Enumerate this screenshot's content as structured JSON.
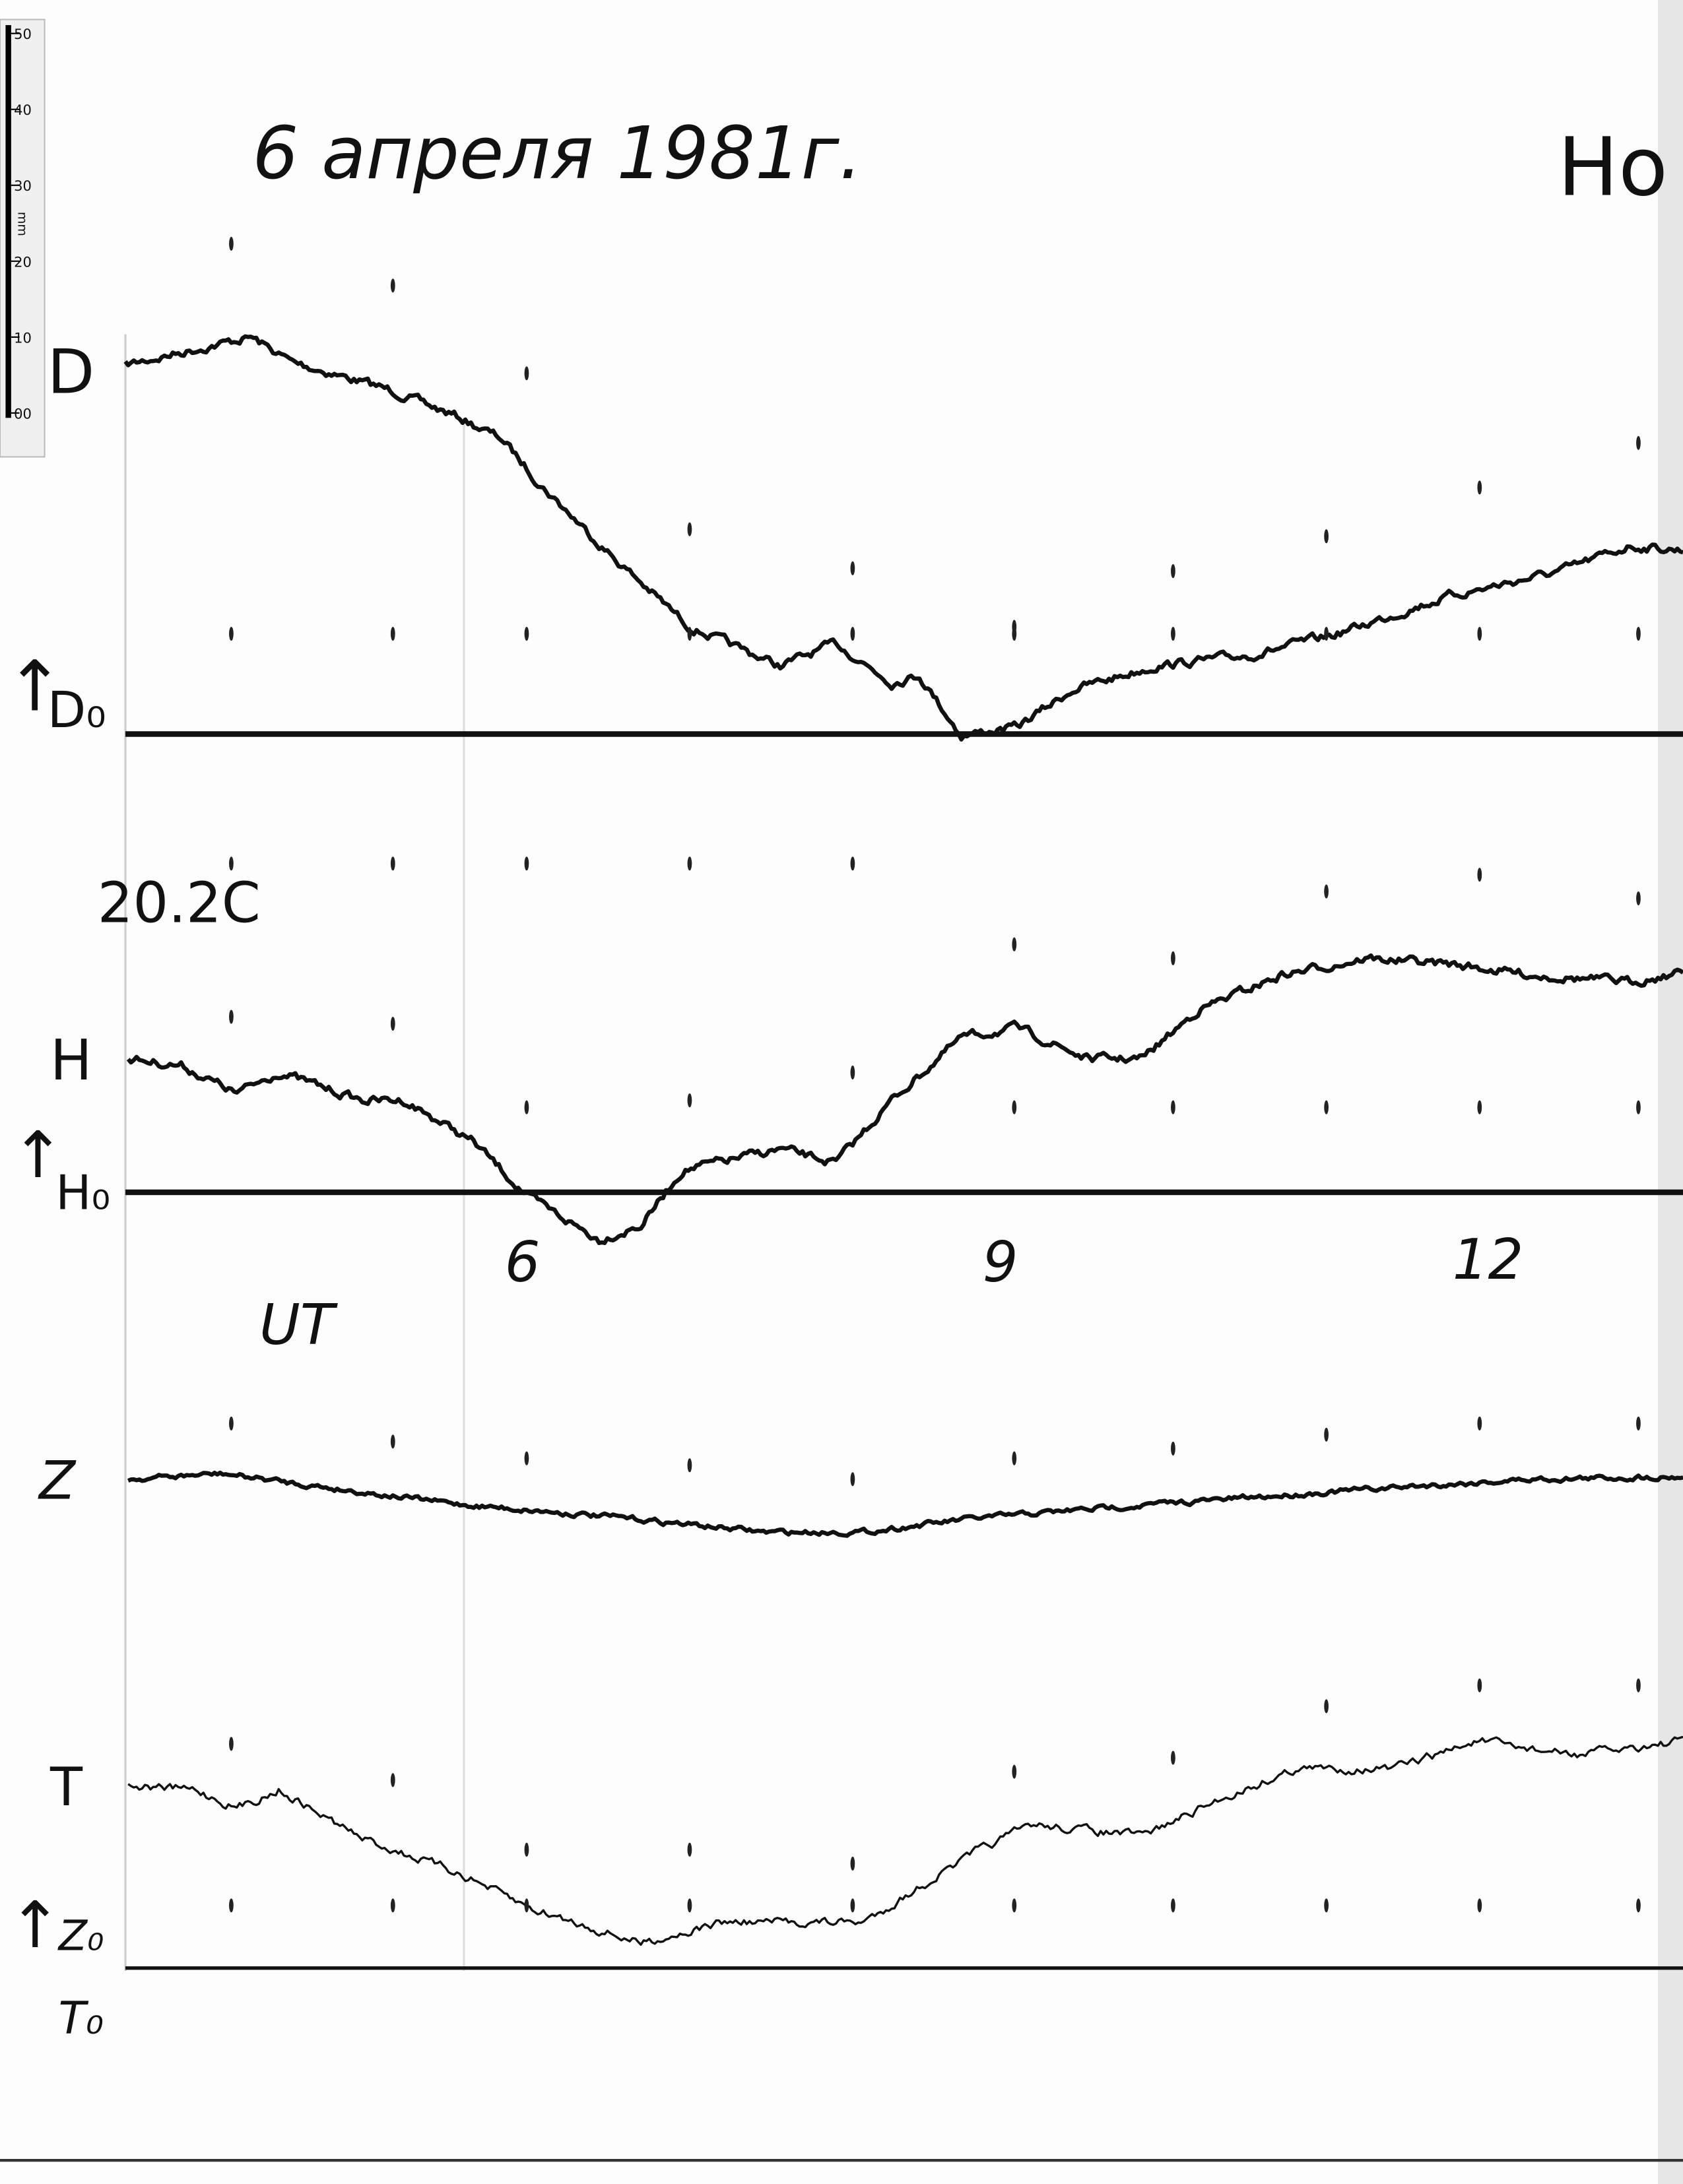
{
  "title": "6 апреля 1981г.",
  "station": "Но",
  "scale": {
    "unit": "mm",
    "marks": [
      "50",
      "40",
      "30",
      "20",
      "10",
      "00"
    ]
  },
  "components": {
    "D": "D",
    "D0": "D₀",
    "temperature": "20.2C",
    "H": "H",
    "H0": "H₀",
    "Z": "Z",
    "T": "T",
    "Z0": "Z₀",
    "T0": "T₀"
  },
  "time_axis": {
    "label": "UT",
    "hours": [
      "6",
      "9",
      "12"
    ]
  }
}
